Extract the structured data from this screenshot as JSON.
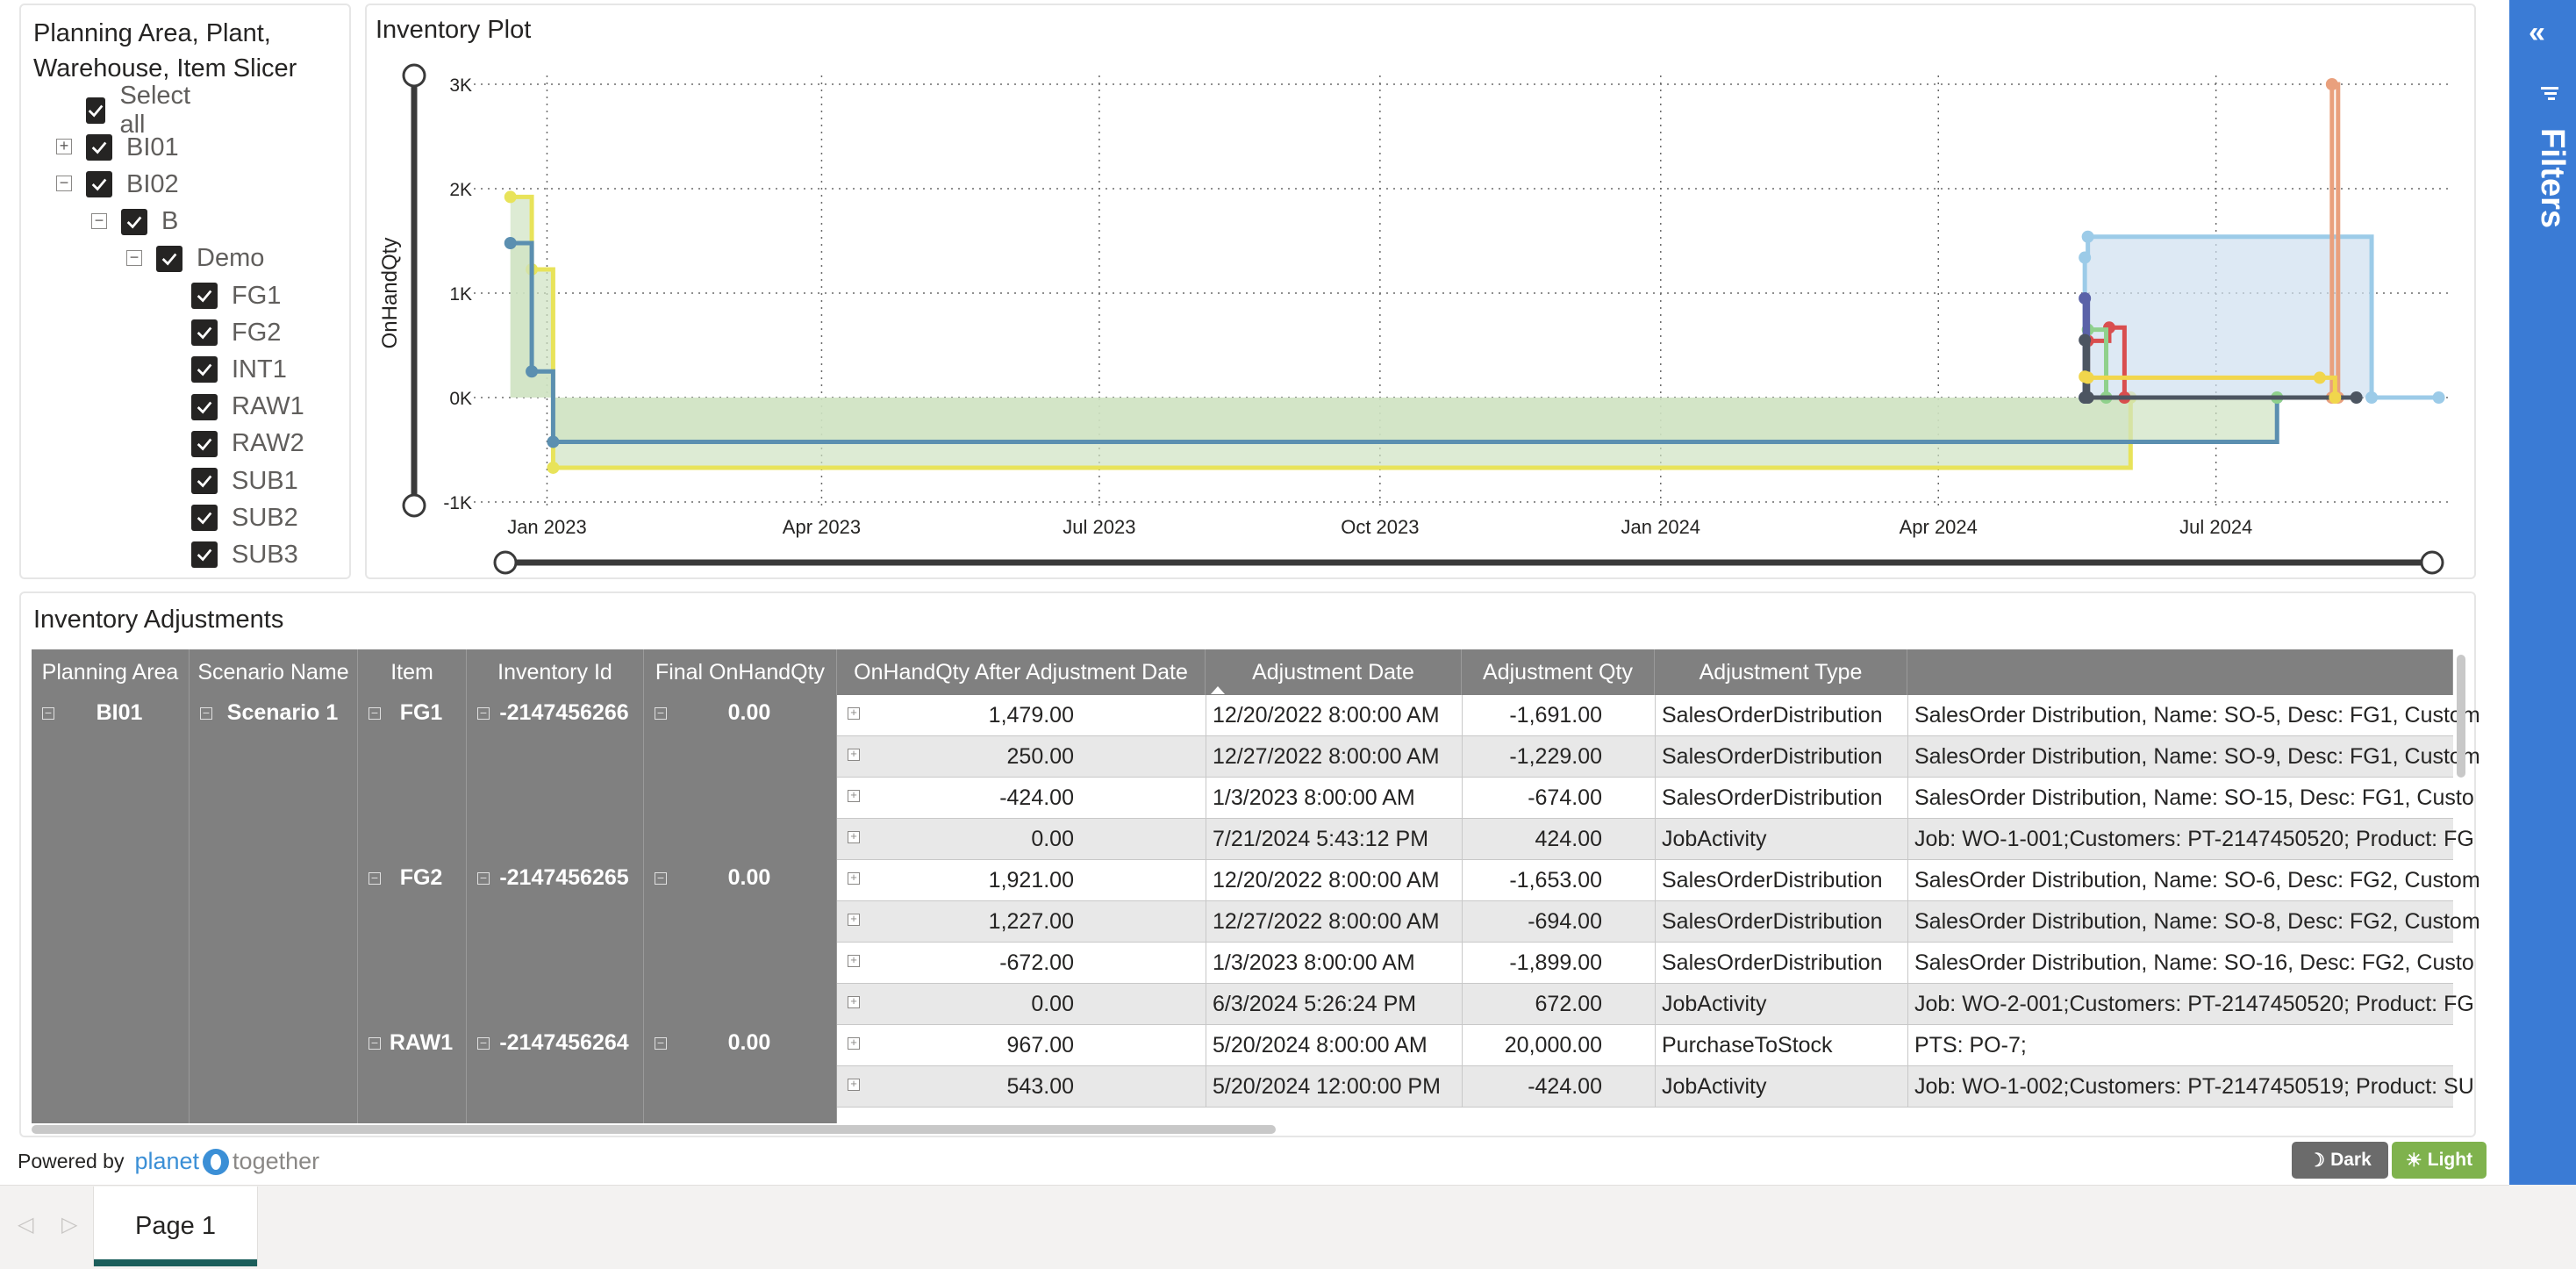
{
  "slicer": {
    "title_line1": "Planning Area, Plant,",
    "title_line2": "Warehouse, Item Slicer",
    "items": [
      {
        "label": "Select all",
        "level": 0,
        "expander": ""
      },
      {
        "label": "BI01",
        "level": 0,
        "expander": "+"
      },
      {
        "label": "BI02",
        "level": 0,
        "expander": "−"
      },
      {
        "label": "B",
        "level": 1,
        "expander": "−"
      },
      {
        "label": "Demo",
        "level": 2,
        "expander": "−"
      },
      {
        "label": "FG1",
        "level": 3,
        "expander": ""
      },
      {
        "label": "FG2",
        "level": 3,
        "expander": ""
      },
      {
        "label": "INT1",
        "level": 3,
        "expander": ""
      },
      {
        "label": "RAW1",
        "level": 3,
        "expander": ""
      },
      {
        "label": "RAW2",
        "level": 3,
        "expander": ""
      },
      {
        "label": "SUB1",
        "level": 3,
        "expander": ""
      },
      {
        "label": "SUB2",
        "level": 3,
        "expander": ""
      },
      {
        "label": "SUB3",
        "level": 3,
        "expander": ""
      }
    ]
  },
  "chart_title": "Inventory Plot",
  "chart_data": {
    "type": "line",
    "step": true,
    "title": "Inventory Plot",
    "ylabel": "OnHandQty",
    "xlabel": "",
    "x_axis": "date",
    "xlim": [
      "2022-12-08",
      "2024-09-15"
    ],
    "ylim": [
      -1000,
      3000
    ],
    "y_ticks": [
      {
        "v": 3000,
        "label": "3K"
      },
      {
        "v": 2000,
        "label": "2K"
      },
      {
        "v": 1000,
        "label": "1K"
      },
      {
        "v": 0,
        "label": "0K"
      },
      {
        "v": -1000,
        "label": "-1K"
      }
    ],
    "x_ticks": [
      {
        "v": "2023-01-01",
        "label": "Jan 2023"
      },
      {
        "v": "2023-04-01",
        "label": "Apr 2023"
      },
      {
        "v": "2023-07-01",
        "label": "Jul 2023"
      },
      {
        "v": "2023-10-01",
        "label": "Oct 2023"
      },
      {
        "v": "2024-01-01",
        "label": "Jan 2024"
      },
      {
        "v": "2024-04-01",
        "label": "Apr 2024"
      },
      {
        "v": "2024-07-01",
        "label": "Jul 2024"
      }
    ],
    "grid": true,
    "series": [
      {
        "color": "#e8e35a",
        "fill": "#cfe3c2",
        "points": [
          [
            "2022-12-20",
            1921
          ],
          [
            "2022-12-27",
            1227
          ],
          [
            "2023-01-03",
            -672
          ],
          [
            "2024-06-03",
            0
          ]
        ]
      },
      {
        "color": "#5b8fb0",
        "fill": "#cfe3c2",
        "points": [
          [
            "2022-12-20",
            1479
          ],
          [
            "2022-12-27",
            250
          ],
          [
            "2023-01-03",
            -424
          ],
          [
            "2024-07-21",
            0
          ]
        ]
      },
      {
        "color": "#9ccbe8",
        "fill": "#cfe0f0",
        "points": [
          [
            "2024-05-19",
            0
          ],
          [
            "2024-05-19",
            1340
          ],
          [
            "2024-05-20",
            1540
          ],
          [
            "2024-08-21",
            0
          ],
          [
            "2024-09-12",
            0
          ]
        ]
      },
      {
        "color": "#e9a07d",
        "fill": "",
        "points": [
          [
            "2024-08-08",
            0
          ],
          [
            "2024-08-08",
            3000
          ],
          [
            "2024-08-10",
            0
          ]
        ]
      },
      {
        "color": "#d94e4e",
        "fill": "",
        "points": [
          [
            "2024-05-20",
            0
          ],
          [
            "2024-05-20",
            543
          ],
          [
            "2024-05-27",
            670
          ],
          [
            "2024-06-01",
            0
          ]
        ]
      },
      {
        "color": "#8fd18c",
        "fill": "",
        "points": [
          [
            "2024-05-20",
            0
          ],
          [
            "2024-05-20",
            650
          ],
          [
            "2024-05-26",
            0
          ],
          [
            "2024-07-21",
            0
          ]
        ]
      },
      {
        "color": "#5a62a8",
        "fill": "",
        "points": [
          [
            "2024-05-19",
            0
          ],
          [
            "2024-05-19",
            950
          ],
          [
            "2024-05-20",
            0
          ]
        ]
      },
      {
        "color": "#4c5561",
        "fill": "",
        "points": [
          [
            "2024-05-19",
            0
          ],
          [
            "2024-05-19",
            550
          ],
          [
            "2024-05-20",
            0
          ],
          [
            "2024-08-16",
            0
          ]
        ]
      },
      {
        "color": "#f1d64c",
        "fill": "",
        "points": [
          [
            "2024-05-19",
            200
          ],
          [
            "2024-05-20",
            190
          ],
          [
            "2024-08-04",
            190
          ],
          [
            "2024-08-09",
            0
          ]
        ]
      }
    ]
  },
  "table": {
    "title": "Inventory Adjustments",
    "headers": [
      "Planning Area",
      "Scenario Name",
      "Item",
      "Inventory Id",
      "Final OnHandQty",
      "OnHandQty After Adjustment Date",
      "Adjustment Date",
      "Adjustment Qty",
      "Adjustment Type",
      ""
    ],
    "group_planning_area": "BI01",
    "group_scenario": "Scenario 1",
    "groups": [
      {
        "item": "FG1",
        "id": "-2147456266",
        "final": "0.00"
      },
      {
        "item": "FG2",
        "id": "-2147456265",
        "final": "0.00"
      },
      {
        "item": "RAW1",
        "id": "-2147456264",
        "final": "0.00"
      }
    ],
    "rows": [
      [
        "1,479.00",
        "12/20/2022 8:00:00 AM",
        "-1,691.00",
        "SalesOrderDistribution",
        "SalesOrder Distribution, Name: SO-5, Desc: FG1, Custom"
      ],
      [
        "250.00",
        "12/27/2022 8:00:00 AM",
        "-1,229.00",
        "SalesOrderDistribution",
        "SalesOrder Distribution, Name: SO-9, Desc: FG1, Custom"
      ],
      [
        "-424.00",
        "1/3/2023 8:00:00 AM",
        "-674.00",
        "SalesOrderDistribution",
        "SalesOrder Distribution, Name: SO-15, Desc: FG1, Custo"
      ],
      [
        "0.00",
        "7/21/2024 5:43:12 PM",
        "424.00",
        "JobActivity",
        "Job: WO-1-001;Customers: PT-2147450520; Product: FG"
      ],
      [
        "1,921.00",
        "12/20/2022 8:00:00 AM",
        "-1,653.00",
        "SalesOrderDistribution",
        "SalesOrder Distribution, Name: SO-6, Desc: FG2, Custom"
      ],
      [
        "1,227.00",
        "12/27/2022 8:00:00 AM",
        "-694.00",
        "SalesOrderDistribution",
        "SalesOrder Distribution, Name: SO-8, Desc: FG2, Custom"
      ],
      [
        "-672.00",
        "1/3/2023 8:00:00 AM",
        "-1,899.00",
        "SalesOrderDistribution",
        "SalesOrder Distribution, Name: SO-16, Desc: FG2, Custo"
      ],
      [
        "0.00",
        "6/3/2024 5:26:24 PM",
        "672.00",
        "JobActivity",
        "Job: WO-2-001;Customers: PT-2147450520; Product: FG"
      ],
      [
        "967.00",
        "5/20/2024 8:00:00 AM",
        "20,000.00",
        "PurchaseToStock",
        "PTS: PO-7;"
      ],
      [
        "543.00",
        "5/20/2024 12:00:00 PM",
        "-424.00",
        "JobActivity",
        "Job: WO-1-002;Customers: PT-2147450519; Product: SU"
      ]
    ]
  },
  "footer": {
    "powered_by": "Powered by",
    "brand_left": "planet",
    "brand_right": "together"
  },
  "theme_buttons": {
    "dark": "Dark",
    "light": "Light"
  },
  "page_tab": "Page 1",
  "filters_label": "Filters",
  "colors": {
    "header_gray": "#808080",
    "filters_blue": "#3a7bd5",
    "tab_accent": "#1b5e5b",
    "dark_btn": "#6b6b6b",
    "light_btn": "#7fb24d"
  }
}
